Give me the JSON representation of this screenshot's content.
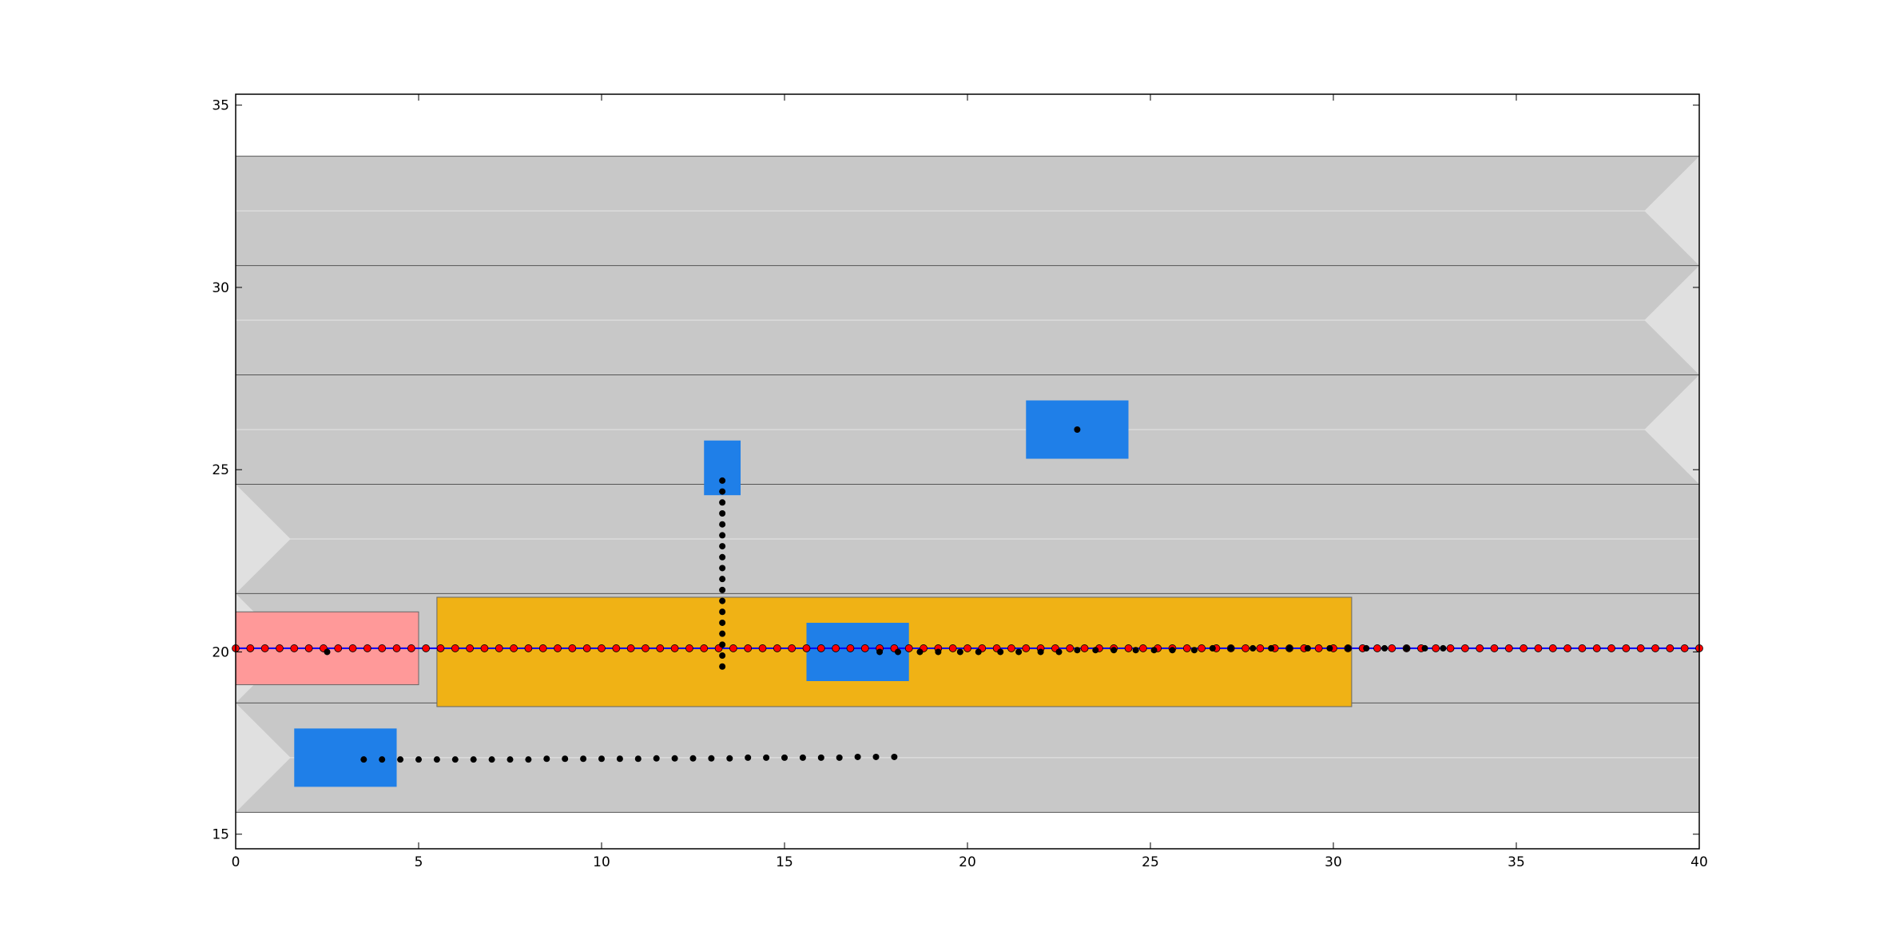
{
  "chart_data": {
    "type": "scatter",
    "title": "",
    "xlabel": "",
    "ylabel": "",
    "xlim": [
      0,
      40
    ],
    "ylim": [
      14.6,
      35.3
    ],
    "x_ticks": [
      0,
      5,
      10,
      15,
      20,
      25,
      30,
      35,
      40
    ],
    "y_ticks": [
      15,
      20,
      25,
      30,
      35
    ],
    "x_tick_labels": [
      "0",
      "5",
      "10",
      "15",
      "20",
      "25",
      "30",
      "35",
      "40"
    ],
    "y_tick_labels": [
      "15",
      "20",
      "25",
      "30",
      "35"
    ],
    "grid": false,
    "road": {
      "y_range": [
        15.6,
        33.6
      ],
      "lane_width": 3,
      "lane_boundaries": [
        18.6,
        21.6,
        24.6,
        27.6,
        30.6
      ],
      "lane_centers": [
        17.1,
        20.1,
        23.1,
        26.1,
        29.1,
        32.1
      ],
      "lane_directions": [
        {
          "center": 17.1,
          "direction": "right"
        },
        {
          "center": 20.1,
          "direction": "right"
        },
        {
          "center": 23.1,
          "direction": "right"
        },
        {
          "center": 26.1,
          "direction": "left"
        },
        {
          "center": 29.1,
          "direction": "left"
        },
        {
          "center": 32.1,
          "direction": "left"
        }
      ]
    },
    "vehicles": [
      {
        "role": "ego",
        "color": "#ff9999",
        "x_range": [
          0,
          5
        ],
        "y_range": [
          19.1,
          21.1
        ]
      },
      {
        "role": "truck",
        "color": "#f0b215",
        "x_range": [
          5.5,
          30.5
        ],
        "y_range": [
          18.5,
          21.5
        ]
      },
      {
        "role": "car",
        "color": "#1f7fe8",
        "x_range": [
          15.6,
          18.4
        ],
        "y_range": [
          19.2,
          20.8
        ]
      },
      {
        "role": "car",
        "color": "#1f7fe8",
        "x_range": [
          12.8,
          13.8
        ],
        "y_range": [
          24.3,
          25.8
        ]
      },
      {
        "role": "car",
        "color": "#1f7fe8",
        "x_range": [
          21.6,
          24.4
        ],
        "y_range": [
          25.3,
          26.9
        ]
      },
      {
        "role": "car",
        "color": "#1f7fe8",
        "x_range": [
          1.6,
          4.4
        ],
        "y_range": [
          16.3,
          17.9
        ]
      }
    ],
    "series": [
      {
        "marker": "red-circle",
        "color": "#ff0000",
        "line_color": "#0000ff",
        "x": [
          0,
          0.4,
          0.8,
          1.2,
          1.6,
          2.0,
          2.4,
          2.8,
          3.2,
          3.6,
          4.0,
          4.4,
          4.8,
          5.2,
          5.6,
          6.0,
          6.4,
          6.8,
          7.2,
          7.6,
          8.0,
          8.4,
          8.8,
          9.2,
          9.6,
          10.0,
          10.4,
          10.8,
          11.2,
          11.6,
          12.0,
          12.4,
          12.8,
          13.2,
          13.6,
          14.0,
          14.4,
          14.8,
          15.2,
          15.6,
          16.0,
          16.4,
          16.8,
          17.2,
          17.6,
          18.0,
          18.4,
          18.8,
          19.2,
          19.6,
          20.0,
          20.4,
          20.8,
          21.2,
          21.6,
          22.0,
          22.4,
          22.8,
          23.2,
          23.6,
          24.0,
          24.4,
          24.8,
          25.2,
          25.6,
          26.0,
          26.4,
          26.8,
          27.2,
          27.6,
          28.0,
          28.4,
          28.8,
          29.2,
          29.6,
          30.0,
          30.4,
          30.8,
          31.2,
          31.6,
          32.0,
          32.4,
          32.8,
          33.2,
          33.6,
          34.0,
          34.4,
          34.8,
          35.2,
          35.6,
          36.0,
          36.4,
          36.8,
          37.2,
          37.6,
          38.0,
          38.4,
          38.8,
          39.2,
          39.6,
          40.0
        ],
        "y": 20.1
      },
      {
        "marker": "black-dot",
        "color": "#000000",
        "x": [
          2.5,
          17.6,
          18.1,
          18.7,
          19.2,
          19.8,
          20.3,
          20.9,
          21.4,
          22.0,
          22.5,
          23.0,
          23.5,
          24.0,
          24.6,
          25.1,
          25.6,
          26.2,
          26.7,
          27.2,
          27.8,
          28.3,
          28.8,
          29.3,
          29.9,
          30.4,
          30.9,
          31.4,
          32.0,
          32.5,
          33.0
        ],
        "y": [
          20.0,
          20.0,
          20.0,
          20.0,
          20.0,
          20.0,
          20.0,
          20.0,
          20.0,
          20.0,
          20.0,
          20.05,
          20.05,
          20.05,
          20.05,
          20.05,
          20.05,
          20.05,
          20.1,
          20.1,
          20.1,
          20.1,
          20.1,
          20.1,
          20.1,
          20.1,
          20.1,
          20.1,
          20.1,
          20.1,
          20.1
        ]
      },
      {
        "marker": "black-dot",
        "color": "#000000",
        "x": 13.3,
        "y": [
          19.6,
          19.9,
          20.2,
          20.5,
          20.8,
          21.1,
          21.4,
          21.7,
          22.0,
          22.3,
          22.6,
          22.9,
          23.2,
          23.5,
          23.8,
          24.1,
          24.4,
          24.7
        ]
      },
      {
        "marker": "black-dot",
        "color": "#000000",
        "x": [
          23.0
        ],
        "y": [
          26.1
        ]
      },
      {
        "marker": "black-dot",
        "color": "#000000",
        "x": [
          3.5,
          4.0,
          4.5,
          5.0,
          5.5,
          6.0,
          6.5,
          7.0,
          7.5,
          8.0,
          8.5,
          9.0,
          9.5,
          10.0,
          10.5,
          11.0,
          11.5,
          12.0,
          12.5,
          13.0,
          13.5,
          14.0,
          14.5,
          15.0,
          15.5,
          16.0,
          16.5,
          17.0,
          17.5,
          18.0
        ],
        "y": [
          17.05,
          17.05,
          17.05,
          17.05,
          17.05,
          17.05,
          17.05,
          17.05,
          17.05,
          17.05,
          17.07,
          17.07,
          17.07,
          17.07,
          17.07,
          17.07,
          17.08,
          17.08,
          17.08,
          17.08,
          17.08,
          17.1,
          17.1,
          17.1,
          17.1,
          17.1,
          17.1,
          17.12,
          17.12,
          17.12
        ]
      }
    ]
  }
}
